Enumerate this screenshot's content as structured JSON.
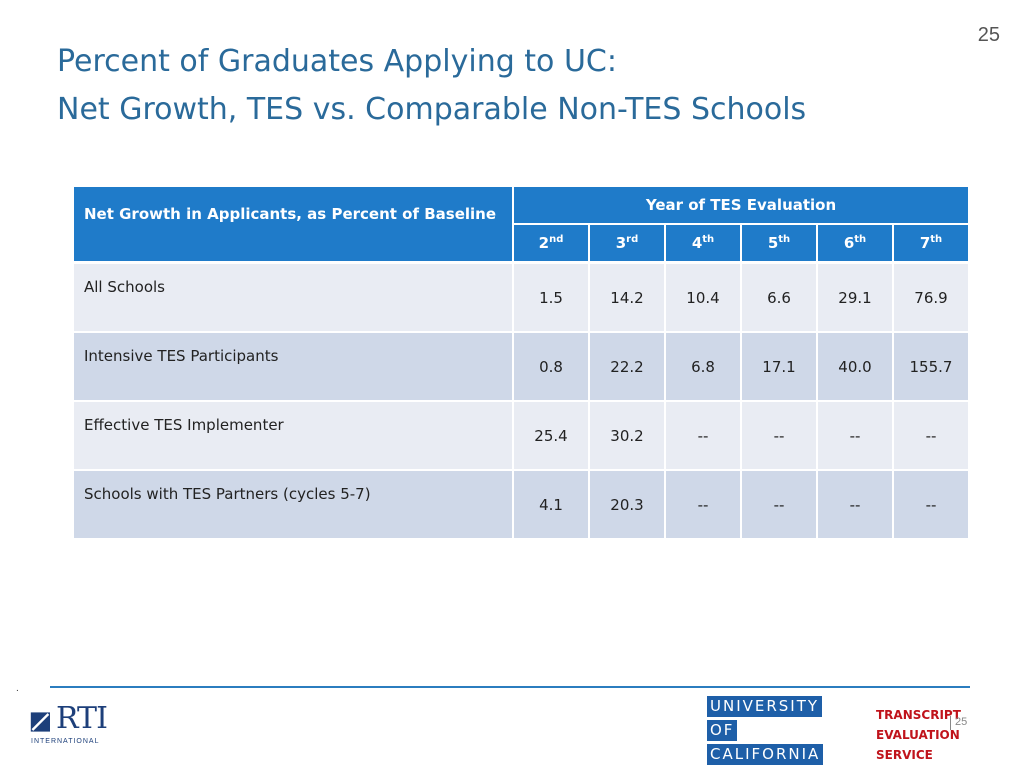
{
  "slide_number": "25",
  "title": {
    "line1": "Percent of Graduates Applying to UC:",
    "line2": "Net Growth, TES vs. Comparable Non-TES Schools"
  },
  "table": {
    "row_header": "Net Growth in Applicants, as Percent of Baseline",
    "group_header": "Year of TES Evaluation",
    "columns": [
      {
        "num": "2",
        "sup": "nd"
      },
      {
        "num": "3",
        "sup": "rd"
      },
      {
        "num": "4",
        "sup": "th"
      },
      {
        "num": "5",
        "sup": "th"
      },
      {
        "num": "6",
        "sup": "th"
      },
      {
        "num": "7",
        "sup": "th"
      }
    ],
    "rows": [
      {
        "label": "All Schools",
        "values": [
          "1.5",
          "14.2",
          "10.4",
          "6.6",
          "29.1",
          "76.9"
        ]
      },
      {
        "label": "Intensive TES Participants",
        "values": [
          "0.8",
          "22.2",
          "6.8",
          "17.1",
          "40.0",
          "155.7"
        ]
      },
      {
        "label": "Effective TES Implementer",
        "values": [
          "25.4",
          "30.2",
          "--",
          "--",
          "--",
          "--"
        ]
      },
      {
        "label": "Schools with TES Partners (cycles 5-7)",
        "values": [
          "4.1",
          "20.3",
          "--",
          "--",
          "--",
          "--"
        ]
      }
    ]
  },
  "footer": {
    "dot": ".",
    "rti_logo": "RTI",
    "rti_sub": "INTERNATIONAL",
    "uc_logo": [
      "UNIVERSITY",
      "OF",
      "CALIFORNIA"
    ],
    "tes_logo": [
      "TRANSCRIPT",
      "EVALUATION",
      "SERVICE"
    ],
    "page_number": "25"
  },
  "colors": {
    "title": "#2a6a9a",
    "header_bg": "#1f7bc9",
    "row_light": "#e9ecf3",
    "row_dark": "#cfd8e8",
    "footer_line": "#2b7dbf",
    "uc_blue": "#1e5fa8",
    "tes_red": "#c0131b"
  }
}
